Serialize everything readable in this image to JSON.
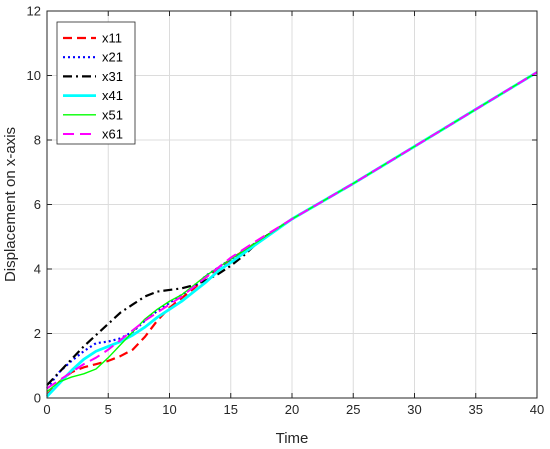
{
  "chart_data": {
    "type": "line",
    "xlabel": "Time",
    "ylabel": "Displacement on x-axis",
    "xlim": [
      0,
      40
    ],
    "ylim": [
      0,
      12
    ],
    "xticks": [
      0,
      5,
      10,
      15,
      20,
      25,
      30,
      35,
      40
    ],
    "yticks": [
      0,
      2,
      4,
      6,
      8,
      10,
      12
    ],
    "grid": true,
    "legend_position": "top-left",
    "series": [
      {
        "name": "x11",
        "color": "#ff0000",
        "style": "dashed",
        "points": [
          [
            0,
            0.1
          ],
          [
            1,
            0.5
          ],
          [
            2,
            0.8
          ],
          [
            3,
            0.95
          ],
          [
            4,
            1.05
          ],
          [
            5,
            1.15
          ],
          [
            6,
            1.3
          ],
          [
            7,
            1.5
          ],
          [
            8,
            1.9
          ],
          [
            9,
            2.4
          ],
          [
            10,
            2.8
          ],
          [
            11,
            3.1
          ],
          [
            12,
            3.4
          ],
          [
            13,
            3.75
          ],
          [
            15,
            4.3
          ],
          [
            17,
            4.8
          ],
          [
            20,
            5.55
          ],
          [
            25,
            6.65
          ],
          [
            30,
            7.8
          ],
          [
            35,
            8.95
          ],
          [
            40,
            10.1
          ]
        ]
      },
      {
        "name": "x21",
        "color": "#0000ff",
        "style": "dotted",
        "points": [
          [
            0,
            0.3
          ],
          [
            1,
            0.8
          ],
          [
            2,
            1.15
          ],
          [
            3,
            1.45
          ],
          [
            4,
            1.7
          ],
          [
            5,
            1.75
          ],
          [
            6,
            1.85
          ],
          [
            7,
            2.05
          ],
          [
            8,
            2.4
          ],
          [
            9,
            2.7
          ],
          [
            10,
            2.95
          ],
          [
            11,
            3.2
          ],
          [
            12,
            3.45
          ],
          [
            13,
            3.8
          ],
          [
            15,
            4.3
          ],
          [
            17,
            4.8
          ],
          [
            20,
            5.55
          ],
          [
            25,
            6.65
          ],
          [
            30,
            7.8
          ],
          [
            35,
            8.95
          ],
          [
            40,
            10.1
          ]
        ]
      },
      {
        "name": "x31",
        "color": "#000000",
        "style": "dashdot",
        "points": [
          [
            0,
            0.4
          ],
          [
            1,
            0.8
          ],
          [
            2,
            1.2
          ],
          [
            3,
            1.6
          ],
          [
            4,
            1.95
          ],
          [
            5,
            2.3
          ],
          [
            6,
            2.65
          ],
          [
            7,
            2.9
          ],
          [
            8,
            3.15
          ],
          [
            9,
            3.3
          ],
          [
            10,
            3.35
          ],
          [
            11,
            3.4
          ],
          [
            12,
            3.5
          ],
          [
            13,
            3.65
          ],
          [
            14,
            3.85
          ],
          [
            15,
            4.1
          ],
          [
            16,
            4.4
          ],
          [
            17,
            4.75
          ],
          [
            18,
            5.05
          ],
          [
            20,
            5.55
          ],
          [
            25,
            6.65
          ],
          [
            30,
            7.8
          ],
          [
            35,
            8.95
          ],
          [
            40,
            10.1
          ]
        ]
      },
      {
        "name": "x41",
        "color": "#00ffff",
        "style": "solid",
        "points": [
          [
            0,
            0.05
          ],
          [
            1,
            0.45
          ],
          [
            2,
            0.85
          ],
          [
            3,
            1.2
          ],
          [
            4,
            1.45
          ],
          [
            5,
            1.6
          ],
          [
            6,
            1.75
          ],
          [
            7,
            1.95
          ],
          [
            8,
            2.2
          ],
          [
            9,
            2.5
          ],
          [
            10,
            2.75
          ],
          [
            11,
            3.0
          ],
          [
            12,
            3.3
          ],
          [
            13,
            3.6
          ],
          [
            14,
            3.95
          ],
          [
            15,
            4.2
          ],
          [
            17,
            4.75
          ],
          [
            20,
            5.55
          ],
          [
            25,
            6.65
          ],
          [
            30,
            7.8
          ],
          [
            35,
            8.95
          ],
          [
            40,
            10.1
          ]
        ]
      },
      {
        "name": "x51",
        "color": "#00ff00",
        "style": "solid",
        "points": [
          [
            0,
            0.2
          ],
          [
            1,
            0.5
          ],
          [
            2,
            0.65
          ],
          [
            3,
            0.75
          ],
          [
            4,
            0.9
          ],
          [
            5,
            1.25
          ],
          [
            6,
            1.65
          ],
          [
            7,
            2.05
          ],
          [
            8,
            2.45
          ],
          [
            9,
            2.75
          ],
          [
            10,
            3.0
          ],
          [
            11,
            3.2
          ],
          [
            12,
            3.5
          ],
          [
            13,
            3.8
          ],
          [
            15,
            4.3
          ],
          [
            17,
            4.8
          ],
          [
            20,
            5.55
          ],
          [
            25,
            6.65
          ],
          [
            30,
            7.8
          ],
          [
            35,
            8.95
          ],
          [
            40,
            10.1
          ]
        ]
      },
      {
        "name": "x61",
        "color": "#ff00ff",
        "style": "longdash",
        "points": [
          [
            0,
            0.3
          ],
          [
            1,
            0.55
          ],
          [
            2,
            0.8
          ],
          [
            3,
            1.05
          ],
          [
            4,
            1.25
          ],
          [
            5,
            1.5
          ],
          [
            6,
            1.8
          ],
          [
            7,
            2.1
          ],
          [
            8,
            2.4
          ],
          [
            9,
            2.65
          ],
          [
            10,
            2.9
          ],
          [
            11,
            3.15
          ],
          [
            12,
            3.45
          ],
          [
            13,
            3.75
          ],
          [
            15,
            4.35
          ],
          [
            17,
            4.85
          ],
          [
            20,
            5.55
          ],
          [
            25,
            6.65
          ],
          [
            30,
            7.8
          ],
          [
            35,
            8.95
          ],
          [
            40,
            10.1
          ]
        ]
      }
    ]
  }
}
